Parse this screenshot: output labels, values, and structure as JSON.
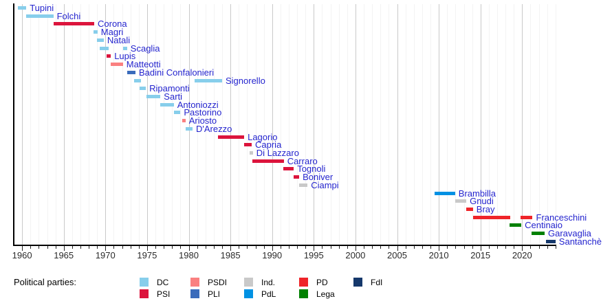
{
  "chart_data": {
    "type": "bar",
    "subtype": "gantt-timeline",
    "title": "",
    "xlabel": "",
    "ylabel": "",
    "grid": "vertical, faint yearly lines with darker lines every 5 years",
    "x_axis": {
      "min": 1959,
      "max": 2024.1,
      "minor_tick_interval": 1,
      "tick_labels": [
        "1960",
        "1965",
        "1970",
        "1975",
        "1980",
        "1985",
        "1990",
        "1995",
        "2000",
        "2005",
        "2010",
        "2015",
        "2020"
      ],
      "tick_label_years": [
        1960,
        1965,
        1970,
        1975,
        1980,
        1985,
        1990,
        1995,
        2000,
        2005,
        2010,
        2015,
        2020
      ]
    },
    "rows": [
      {
        "name": "Tupini",
        "party": "DC",
        "terms": [
          [
            1959.5,
            1960.5
          ]
        ]
      },
      {
        "name": "Folchi",
        "party": "DC",
        "terms": [
          [
            1960.5,
            1963.75
          ]
        ]
      },
      {
        "name": "Corona",
        "party": "PSI",
        "terms": [
          [
            1963.8,
            1968.65
          ]
        ]
      },
      {
        "name": "Magri",
        "party": "DC",
        "terms": [
          [
            1968.6,
            1969.05
          ]
        ]
      },
      {
        "name": "Natali",
        "party": "DC",
        "terms": [
          [
            1968.95,
            1969.8
          ]
        ]
      },
      {
        "name": "Scaglia",
        "party": "DC",
        "terms": [
          [
            1969.35,
            1970.4
          ],
          [
            1972.1,
            1972.6
          ]
        ]
      },
      {
        "name": "Lupis",
        "party": "PSI",
        "terms": [
          [
            1970.15,
            1970.65
          ]
        ]
      },
      {
        "name": "Matteotti",
        "party": "PSDI",
        "terms": [
          [
            1970.6,
            1972.1
          ]
        ]
      },
      {
        "name": "Badini Confalonieri",
        "party": "PLI",
        "terms": [
          [
            1972.6,
            1973.6
          ]
        ]
      },
      {
        "name": "Signorello",
        "party": "DC",
        "terms": [
          [
            1973.45,
            1974.3
          ],
          [
            1980.7,
            1984.0
          ]
        ]
      },
      {
        "name": "Ripamonti",
        "party": "DC",
        "terms": [
          [
            1974.1,
            1974.85
          ]
        ]
      },
      {
        "name": "Sarti",
        "party": "DC",
        "terms": [
          [
            1974.9,
            1976.6
          ]
        ]
      },
      {
        "name": "Antoniozzi",
        "party": "DC",
        "terms": [
          [
            1976.6,
            1978.2
          ]
        ]
      },
      {
        "name": "Pastorino",
        "party": "DC",
        "terms": [
          [
            1978.2,
            1979.0
          ]
        ]
      },
      {
        "name": "Ariosto",
        "party": "PSDI",
        "terms": [
          [
            1979.2,
            1979.6
          ]
        ]
      },
      {
        "name": "D'Arezzo",
        "party": "DC",
        "terms": [
          [
            1979.6,
            1980.45
          ]
        ]
      },
      {
        "name": "Lagorio",
        "party": "PSI",
        "terms": [
          [
            1983.5,
            1986.65
          ]
        ]
      },
      {
        "name": "Capria",
        "party": "PSI",
        "terms": [
          [
            1986.65,
            1987.55
          ]
        ]
      },
      {
        "name": "Di Lazzaro",
        "party": "Ind.",
        "terms": [
          [
            1987.3,
            1987.7
          ]
        ]
      },
      {
        "name": "Carraro",
        "party": "PSI",
        "terms": [
          [
            1987.6,
            1991.4
          ]
        ]
      },
      {
        "name": "Tognoli",
        "party": "PSI",
        "terms": [
          [
            1991.35,
            1992.6
          ]
        ]
      },
      {
        "name": "Boniver",
        "party": "PSI",
        "terms": [
          [
            1992.6,
            1993.25
          ]
        ]
      },
      {
        "name": "Ciampi",
        "party": "Ind.",
        "terms": [
          [
            1993.25,
            1994.25
          ]
        ]
      },
      {
        "name": "Brambilla",
        "party": "PdL",
        "terms": [
          [
            2009.5,
            2011.95
          ]
        ]
      },
      {
        "name": "Gnudi",
        "party": "Ind.",
        "terms": [
          [
            2011.95,
            2013.3
          ]
        ]
      },
      {
        "name": "Bray",
        "party": "PD",
        "terms": [
          [
            2013.3,
            2014.1
          ]
        ]
      },
      {
        "name": "Franceschini",
        "party": "PD",
        "terms": [
          [
            2014.1,
            2018.55
          ],
          [
            2019.8,
            2021.25
          ]
        ]
      },
      {
        "name": "Centinaio",
        "party": "Lega",
        "terms": [
          [
            2018.45,
            2019.9
          ]
        ]
      },
      {
        "name": "Garavaglia",
        "party": "Lega",
        "terms": [
          [
            2021.1,
            2022.7
          ]
        ]
      },
      {
        "name": "Santanchè",
        "party": "FdI",
        "terms": [
          [
            2022.85,
            2024.0
          ]
        ]
      }
    ],
    "parties": {
      "DC": "#87CEEB",
      "PSI": "#DC143C",
      "PSDI": "#FA8080",
      "PLI": "#3A6BBB",
      "Ind.": "#C9C9C9",
      "PdL": "#0091E3",
      "PD": "#EF2429",
      "Lega": "#008000",
      "FdI": "#15386B"
    },
    "legend": {
      "title": "Political parties:",
      "position": "bottom",
      "columns": [
        [
          "DC",
          "PSI"
        ],
        [
          "PSDI",
          "PLI"
        ],
        [
          "Ind.",
          "PdL"
        ],
        [
          "PD",
          "Lega"
        ],
        [
          "FdI"
        ]
      ]
    }
  }
}
